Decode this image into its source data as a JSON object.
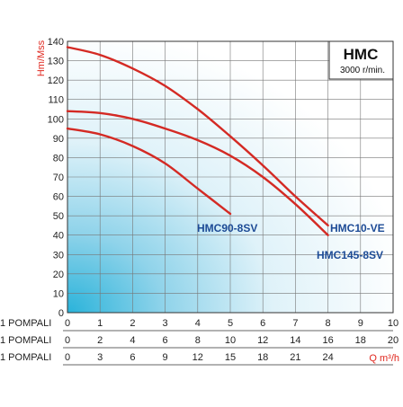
{
  "chart_data": {
    "type": "line",
    "title": "HMC",
    "subtitle": "3000 r/min.",
    "ylabel": "Hm/Mss",
    "xlabel": "Q m³/h",
    "ylim": [
      0,
      140
    ],
    "xlim": [
      0,
      10
    ],
    "grid": true,
    "y_ticks": [
      "0",
      "10",
      "20",
      "30",
      "40",
      "50",
      "60",
      "70",
      "80",
      "90",
      "100",
      "110",
      "120",
      "130",
      "140"
    ],
    "x_rows": [
      {
        "label": "1 POMPALI",
        "ticks": [
          "0",
          "1",
          "2",
          "3",
          "4",
          "5",
          "6",
          "7",
          "8",
          "9",
          "10"
        ]
      },
      {
        "label": "1 POMPALI",
        "ticks": [
          "0",
          "2",
          "4",
          "6",
          "8",
          "10",
          "12",
          "14",
          "16",
          "18",
          "20"
        ]
      },
      {
        "label": "1 POMPALI",
        "ticks": [
          "0",
          "3",
          "6",
          "9",
          "12",
          "15",
          "18",
          "21",
          "24"
        ]
      }
    ],
    "series": [
      {
        "name": "HMC10-VE",
        "color": "#d42a24",
        "x": [
          0,
          1,
          2,
          3,
          4,
          5,
          6,
          7,
          8
        ],
        "y": [
          137,
          133,
          126,
          117,
          105,
          91,
          76,
          60,
          45
        ]
      },
      {
        "name": "HMC145-8SV",
        "color": "#d42a24",
        "x": [
          0,
          1,
          2,
          3,
          4,
          5,
          6,
          7,
          8
        ],
        "y": [
          104,
          103,
          100,
          95,
          89,
          81,
          70,
          56,
          40
        ]
      },
      {
        "name": "HMC90-8SV",
        "color": "#d42a24",
        "x": [
          0,
          1,
          2,
          3,
          4,
          5
        ],
        "y": [
          95,
          92,
          86,
          77,
          64,
          51
        ]
      }
    ]
  },
  "labels": {
    "hmc90": "HMC90-8SV",
    "hmc10": "HMC10-VE",
    "hmc145": "HMC145-8SV"
  }
}
